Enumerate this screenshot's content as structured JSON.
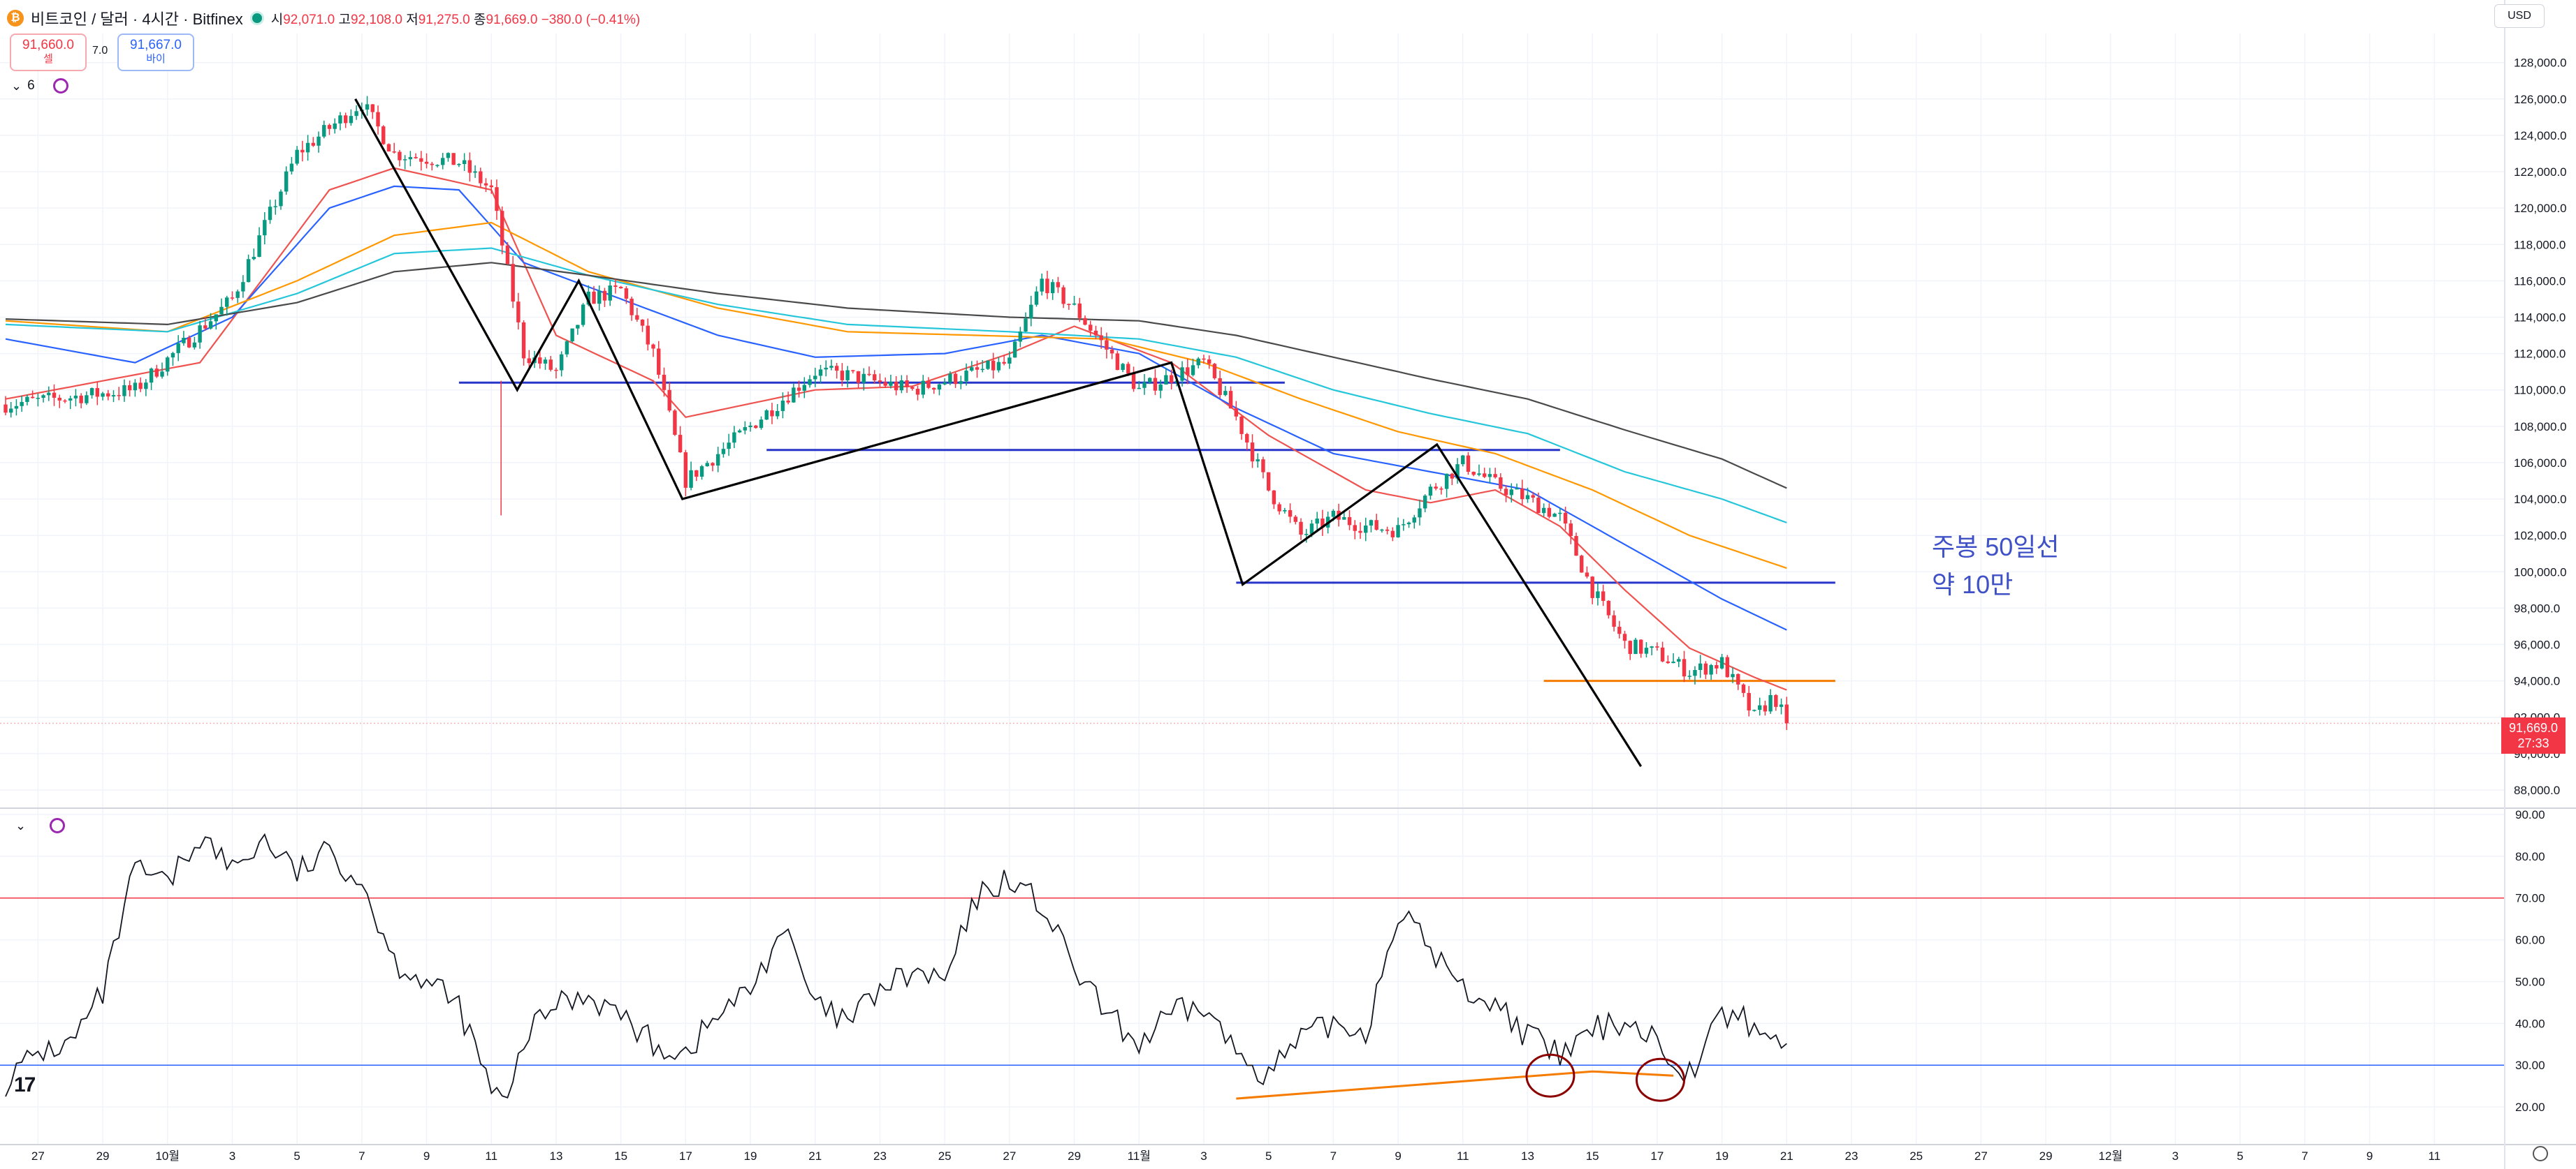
{
  "header": {
    "coin_glyph": "₿",
    "symbol_title": "비트코인 / 달러 · 4시간 · Bitfinex",
    "ohlc": {
      "o_label": "시",
      "o": "92,071.0",
      "h_label": "고",
      "h": "92,108.0",
      "l_label": "저",
      "l": "91,275.0",
      "c_label": "종",
      "c": "91,669.0",
      "chg": "−380.0 (−0.41%)"
    },
    "sell_price": "91,660.0",
    "sell_label": "셀",
    "spread": "7.0",
    "buy_price": "91,667.0",
    "buy_label": "바이",
    "indicator_count": "6",
    "currency": "USD"
  },
  "annotations": {
    "line1": "주봉 50일선",
    "line2": "약 10만"
  },
  "last_price": {
    "value": "91,669.0",
    "countdown": "27:33"
  },
  "colors": {
    "up": "#089981",
    "down": "#f23645",
    "rsi": "#131722",
    "rsi_upper": "#f23645",
    "rsi_lower": "#2962ff",
    "annotation": "#3f51c6",
    "trend": "#000000",
    "level": "#2835c9",
    "orange": "#f57c00"
  },
  "chart_data": [
    {
      "type": "candlestick",
      "title": "",
      "y_ticks": [
        "128,000.0",
        "126,000.0",
        "124,000.0",
        "122,000.0",
        "120,000.0",
        "118,000.0",
        "116,000.0",
        "114,000.0",
        "112,000.0",
        "110,000.0",
        "108,000.0",
        "106,000.0",
        "104,000.0",
        "102,000.0",
        "100,000.0",
        "98,000.0",
        "96,000.0",
        "94,000.0",
        "92,000.0",
        "90,000.0",
        "88,000.0"
      ],
      "y_tick_values": [
        128000,
        126000,
        124000,
        122000,
        120000,
        118000,
        116000,
        114000,
        112000,
        110000,
        108000,
        106000,
        104000,
        102000,
        100000,
        98000,
        96000,
        94000,
        92000,
        90000,
        88000
      ],
      "ylim": [
        87000,
        129600
      ],
      "x_ticks": [
        "27",
        "29",
        "10월",
        "3",
        "5",
        "7",
        "9",
        "11",
        "13",
        "15",
        "17",
        "19",
        "21",
        "23",
        "25",
        "27",
        "29",
        "11월",
        "3",
        "5",
        "7",
        "9",
        "11",
        "13",
        "15",
        "17",
        "19",
        "21",
        "23",
        "25",
        "27",
        "29",
        "12월",
        "3",
        "5",
        "7",
        "9",
        "11"
      ],
      "x_tick_days": [
        0,
        2,
        4,
        6,
        8,
        10,
        12,
        14,
        16,
        18,
        20,
        22,
        24,
        26,
        28,
        30,
        32,
        34,
        36,
        38,
        40,
        42,
        44,
        46,
        48,
        50,
        52,
        54,
        56,
        58,
        60,
        62,
        64,
        66,
        68,
        70,
        72,
        74
      ],
      "xlim_days": [
        -1.0,
        76.0
      ],
      "close_path": [
        [
          -1,
          109200
        ],
        [
          3,
          110000
        ],
        [
          6,
          115000
        ],
        [
          8,
          123000
        ],
        [
          10,
          125800
        ],
        [
          11,
          123000
        ],
        [
          13,
          122500
        ],
        [
          14,
          121000
        ],
        [
          15,
          112000
        ],
        [
          16,
          111000
        ],
        [
          17,
          115000
        ],
        [
          18,
          115500
        ],
        [
          19,
          112000
        ],
        [
          20,
          105000
        ],
        [
          22,
          108000
        ],
        [
          24,
          111000
        ],
        [
          25,
          110800
        ],
        [
          27,
          110000
        ],
        [
          30,
          111500
        ],
        [
          31,
          116000
        ],
        [
          32,
          114500
        ],
        [
          34,
          110000
        ],
        [
          36,
          111500
        ],
        [
          37,
          108500
        ],
        [
          38,
          104500
        ],
        [
          39,
          102000
        ],
        [
          40,
          103000
        ],
        [
          41,
          102500
        ],
        [
          42,
          102300
        ],
        [
          43,
          104500
        ],
        [
          44,
          106000
        ],
        [
          45,
          104800
        ],
        [
          46,
          104000
        ],
        [
          47,
          103000
        ],
        [
          48,
          99000
        ],
        [
          49,
          96000
        ],
        [
          50,
          95500
        ],
        [
          51,
          94500
        ],
        [
          52,
          95000
        ],
        [
          53,
          92000
        ],
        [
          53.6,
          93200
        ],
        [
          54,
          91669
        ]
      ],
      "moving_averages": [
        {
          "color": "#ef5350",
          "points": [
            [
              -1,
              109500
            ],
            [
              5,
              111500
            ],
            [
              9,
              121000
            ],
            [
              11,
              122200
            ],
            [
              14,
              121000
            ],
            [
              16,
              113000
            ],
            [
              19,
              110500
            ],
            [
              20,
              108500
            ],
            [
              24,
              110000
            ],
            [
              27,
              110200
            ],
            [
              30,
              112000
            ],
            [
              32,
              113500
            ],
            [
              35,
              111500
            ],
            [
              38,
              107500
            ],
            [
              41,
              104500
            ],
            [
              43,
              103800
            ],
            [
              45,
              104500
            ],
            [
              47,
              102500
            ],
            [
              49,
              99000
            ],
            [
              51,
              95800
            ],
            [
              53,
              94200
            ],
            [
              54,
              93500
            ]
          ]
        },
        {
          "color": "#2962ff",
          "points": [
            [
              -1,
              112800
            ],
            [
              3,
              111500
            ],
            [
              6,
              114000
            ],
            [
              9,
              120000
            ],
            [
              11,
              121200
            ],
            [
              13,
              121000
            ],
            [
              15,
              117000
            ],
            [
              18,
              115000
            ],
            [
              21,
              113000
            ],
            [
              24,
              111800
            ],
            [
              28,
              112000
            ],
            [
              31,
              113000
            ],
            [
              34,
              112000
            ],
            [
              37,
              109000
            ],
            [
              40,
              106500
            ],
            [
              43,
              105500
            ],
            [
              46,
              104500
            ],
            [
              49,
              101500
            ],
            [
              52,
              98500
            ],
            [
              54,
              96800
            ]
          ]
        },
        {
          "color": "#ff9800",
          "points": [
            [
              -1,
              113800
            ],
            [
              4,
              113200
            ],
            [
              8,
              116000
            ],
            [
              11,
              118500
            ],
            [
              14,
              119200
            ],
            [
              17,
              116500
            ],
            [
              21,
              114500
            ],
            [
              25,
              113200
            ],
            [
              29,
              113000
            ],
            [
              33,
              112800
            ],
            [
              36,
              111500
            ],
            [
              39,
              109500
            ],
            [
              42,
              107700
            ],
            [
              45,
              106500
            ],
            [
              48,
              104500
            ],
            [
              51,
              102000
            ],
            [
              54,
              100200
            ]
          ]
        },
        {
          "color": "#26c6da",
          "points": [
            [
              -1,
              113600
            ],
            [
              4,
              113200
            ],
            [
              8,
              115300
            ],
            [
              11,
              117500
            ],
            [
              14,
              117800
            ],
            [
              17,
              116300
            ],
            [
              21,
              114700
            ],
            [
              25,
              113600
            ],
            [
              30,
              113200
            ],
            [
              34,
              112800
            ],
            [
              37,
              111800
            ],
            [
              40,
              110000
            ],
            [
              43,
              108700
            ],
            [
              46,
              107600
            ],
            [
              49,
              105500
            ],
            [
              52,
              104000
            ],
            [
              54,
              102700
            ]
          ]
        },
        {
          "color": "#4a4a4a",
          "points": [
            [
              -1,
              113900
            ],
            [
              4,
              113600
            ],
            [
              8,
              114800
            ],
            [
              11,
              116500
            ],
            [
              14,
              117000
            ],
            [
              17,
              116300
            ],
            [
              21,
              115300
            ],
            [
              25,
              114500
            ],
            [
              30,
              114000
            ],
            [
              34,
              113800
            ],
            [
              37,
              113000
            ],
            [
              40,
              111800
            ],
            [
              43,
              110600
            ],
            [
              46,
              109500
            ],
            [
              49,
              107800
            ],
            [
              52,
              106200
            ],
            [
              54,
              104600
            ]
          ]
        }
      ],
      "trend_lines": [
        [
          [
            9.8,
            126000
          ],
          [
            14.8,
            110000
          ],
          [
            16.7,
            116000
          ],
          [
            19.9,
            104000
          ],
          [
            35.0,
            111500
          ],
          [
            37.2,
            99300
          ],
          [
            43.2,
            107000
          ],
          [
            49.5,
            89300
          ]
        ]
      ],
      "levels": [
        {
          "color": "#2835c9",
          "from": 13,
          "to": 38.5,
          "y": 110400
        },
        {
          "color": "#2835c9",
          "from": 22.5,
          "to": 47,
          "y": 106700
        },
        {
          "color": "#2835c9",
          "from": 37,
          "to": 55.5,
          "y": 99400
        },
        {
          "color": "#f57c00",
          "from": 46.5,
          "to": 55.5,
          "y": 94000
        }
      ],
      "price_line": 91669
    },
    {
      "type": "line",
      "title": "",
      "y_ticks": [
        "90.00",
        "80.00",
        "70.00",
        "60.00",
        "50.00",
        "40.00",
        "30.00",
        "20.00"
      ],
      "y_tick_values": [
        90,
        80,
        70,
        60,
        50,
        40,
        30,
        20
      ],
      "ylim": [
        11,
        91.5
      ],
      "upper_band": 70,
      "lower_band": 30,
      "series": [
        {
          "values": [
            [
              -1,
              26
            ],
            [
              0,
              33
            ],
            [
              1,
              35
            ],
            [
              2,
              47
            ],
            [
              3,
              77
            ],
            [
              4,
              73
            ],
            [
              5,
              85
            ],
            [
              6,
              77
            ],
            [
              7,
              84
            ],
            [
              8,
              76
            ],
            [
              9,
              81
            ],
            [
              10,
              74
            ],
            [
              11,
              55
            ],
            [
              12,
              50
            ],
            [
              13,
              44
            ],
            [
              14,
              24
            ],
            [
              14.5,
              20
            ],
            [
              15,
              36
            ],
            [
              16,
              45
            ],
            [
              17,
              47
            ],
            [
              18,
              42
            ],
            [
              19,
              35
            ],
            [
              20,
              33
            ],
            [
              21,
              42
            ],
            [
              22,
              48
            ],
            [
              23,
              63
            ],
            [
              24,
              44
            ],
            [
              25,
              40
            ],
            [
              26,
              48
            ],
            [
              27,
              52
            ],
            [
              28,
              50
            ],
            [
              29,
              70
            ],
            [
              30,
              75
            ],
            [
              31,
              68
            ],
            [
              32,
              53
            ],
            [
              33,
              42
            ],
            [
              34,
              35
            ],
            [
              35,
              42
            ],
            [
              36,
              44
            ],
            [
              37,
              33
            ],
            [
              38,
              28
            ],
            [
              39,
              36
            ],
            [
              40,
              40
            ],
            [
              41,
              38
            ],
            [
              42,
              67
            ],
            [
              43,
              58
            ],
            [
              44,
              48
            ],
            [
              45,
              45
            ],
            [
              46,
              37
            ],
            [
              47,
              32
            ],
            [
              48,
              38
            ],
            [
              49,
              41
            ],
            [
              50,
              36
            ],
            [
              51,
              28
            ],
            [
              52,
              42
            ],
            [
              53,
              40
            ],
            [
              53.5,
              35
            ],
            [
              54,
              37
            ]
          ]
        }
      ],
      "divergence_line": [
        [
          37,
          22
        ],
        [
          48,
          28.5
        ],
        [
          50.5,
          27.5
        ]
      ],
      "circles": [
        [
          46.7,
          27.5
        ],
        [
          50.1,
          26.5
        ]
      ]
    }
  ]
}
